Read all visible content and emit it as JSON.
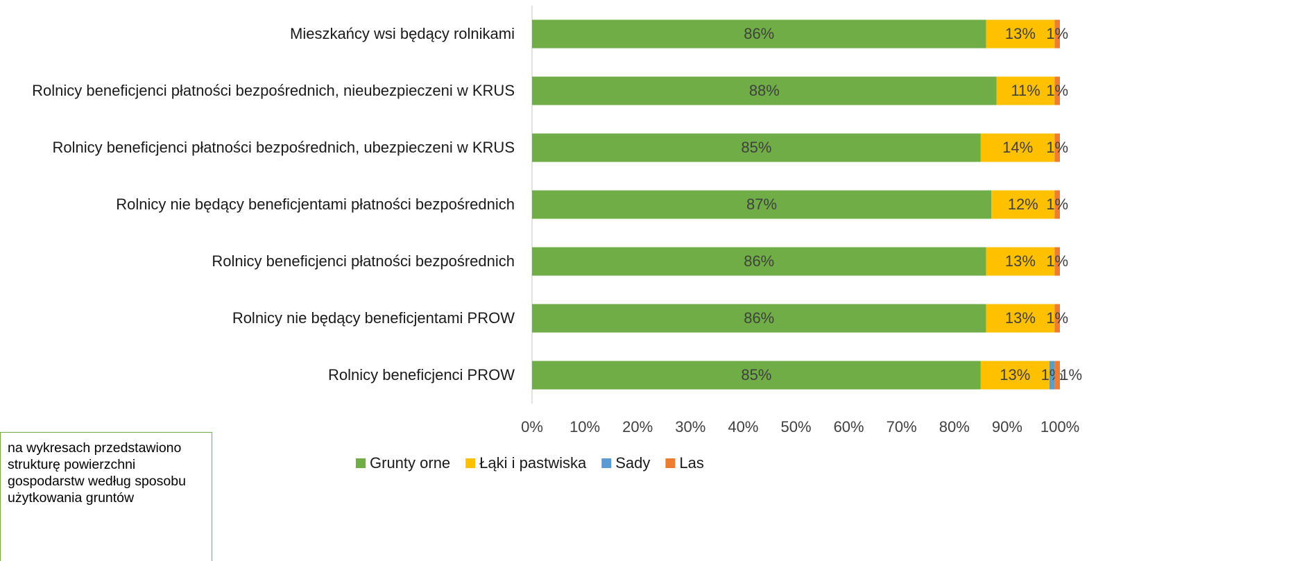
{
  "chart_data": {
    "type": "stacked_barh",
    "categories": [
      "Mieszkańcy wsi będący rolnikami",
      "Rolnicy beneficjenci płatności bezpośrednich, nieubezpieczeni w KRUS",
      "Rolnicy beneficjenci płatności bezpośrednich, ubezpieczeni w KRUS",
      "Rolnicy nie będący beneficjentami płatności bezpośrednich",
      "Rolnicy beneficjenci płatności bezpośrednich",
      "Rolnicy nie będący beneficjentami PROW",
      "Rolnicy beneficjenci PROW"
    ],
    "series": [
      {
        "name": "Grunty orne",
        "color": "#70ad47",
        "values": [
          86,
          88,
          85,
          87,
          86,
          86,
          85
        ],
        "value_labels": [
          "86%",
          "88%",
          "85%",
          "87%",
          "86%",
          "86%",
          "85%"
        ]
      },
      {
        "name": "Łąki i pastwiska",
        "color": "#ffc000",
        "values": [
          13,
          11,
          14,
          12,
          13,
          13,
          13
        ],
        "value_labels": [
          "13%",
          "11%",
          "14%",
          "12%",
          "13%",
          "13%",
          "13%"
        ]
      },
      {
        "name": "Sady",
        "color": "#5b9bd5",
        "values": [
          null,
          null,
          null,
          null,
          null,
          null,
          1
        ],
        "value_labels": [
          null,
          null,
          null,
          null,
          null,
          null,
          "1%"
        ]
      },
      {
        "name": "Las",
        "color": "#ed7d31",
        "values": [
          1,
          1,
          1,
          1,
          1,
          1,
          1
        ],
        "value_labels": [
          "1%",
          "1%",
          "1%",
          "1%",
          "1%",
          "1%",
          "1%"
        ]
      }
    ],
    "xlim": [
      0,
      100
    ],
    "xticks": [
      {
        "value": 0,
        "label": "0%"
      },
      {
        "value": 10,
        "label": "10%"
      },
      {
        "value": 20,
        "label": "20%"
      },
      {
        "value": 30,
        "label": "30%"
      },
      {
        "value": 40,
        "label": "40%"
      },
      {
        "value": 50,
        "label": "50%"
      },
      {
        "value": 60,
        "label": "60%"
      },
      {
        "value": 70,
        "label": "70%"
      },
      {
        "value": 80,
        "label": "80%"
      },
      {
        "value": 90,
        "label": "90%"
      },
      {
        "value": 100,
        "label": "100%"
      }
    ],
    "grid": false,
    "legend": "bottom",
    "annotation": "na wykresach przedstawiono strukturę powierzchni gospodarstw według sposobu użytkowania gruntów"
  }
}
